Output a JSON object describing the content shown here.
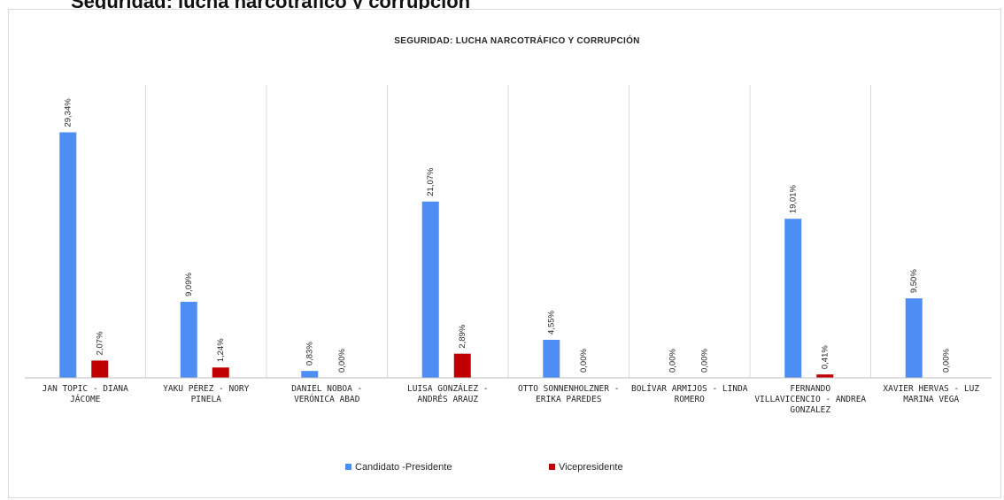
{
  "page": {
    "heading": "Seguridad: lucha narcotráfico y corrupción"
  },
  "chart_data": {
    "type": "bar",
    "title": "SEGURIDAD: LUCHA NARCOTRÁFICO Y CORRUPCIÓN",
    "categories": [
      [
        "JAN TOPIC - DIANA",
        "JÁCOME"
      ],
      [
        "YAKU PÉREZ - NORY",
        "PINELA"
      ],
      [
        "DANIEL NOBOA -",
        "VERÓNICA ABAD"
      ],
      [
        "LUISA GONZÁLEZ -",
        "ANDRÉS ARAUZ"
      ],
      [
        "OTTO SONNENHOLZNER -",
        "ERIKA PAREDES"
      ],
      [
        "BOLÍVAR ARMIJOS - LINDA",
        "ROMERO"
      ],
      [
        "FERNANDO",
        "VILLAVICENCIO - ANDREA",
        "GONZALEZ"
      ],
      [
        "XAVIER HERVAS - LUZ",
        "MARINA VEGA"
      ]
    ],
    "series": [
      {
        "name": "Candidato -Presidente",
        "color": "#4d8ef5",
        "values": [
          29.34,
          9.09,
          0.83,
          21.07,
          4.55,
          0.0,
          19.01,
          9.5
        ],
        "labels": [
          "29,34%",
          "9,09%",
          "0,83%",
          "21,07%",
          "4,55%",
          "0,00%",
          "19,01%",
          "9,50%"
        ]
      },
      {
        "name": "Vicepresidente",
        "color": "#c00000",
        "values": [
          2.07,
          1.24,
          0.0,
          2.89,
          0.0,
          0.0,
          0.41,
          0.0
        ],
        "labels": [
          "2,07%",
          "1,24%",
          "0,00%",
          "2,89%",
          "0,00%",
          "0,00%",
          "0,41%",
          "0,00%"
        ]
      }
    ],
    "ylim": [
      0,
      35
    ],
    "grid": "vertical category separators",
    "legend_position": "bottom"
  }
}
